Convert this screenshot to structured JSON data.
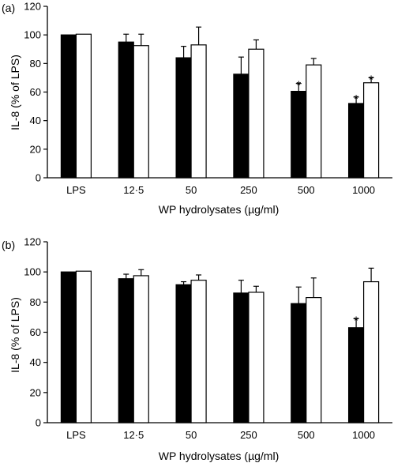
{
  "chart_data": [
    {
      "type": "bar",
      "panel_label": "(a)",
      "categories": [
        "LPS",
        "12·5",
        "50",
        "250",
        "500",
        "1000"
      ],
      "series": [
        {
          "values": [
            100,
            95,
            84,
            72.5,
            60.5,
            52
          ],
          "errors": [
            0,
            5.5,
            8,
            12,
            5.5,
            4.5
          ],
          "significant": [
            false,
            false,
            false,
            false,
            true,
            true
          ],
          "color": "#000000"
        },
        {
          "values": [
            100.5,
            92.5,
            93,
            90,
            79,
            66.5
          ],
          "errors": [
            0,
            8,
            12.5,
            6.5,
            4.5,
            3.5
          ],
          "significant": [
            false,
            false,
            false,
            false,
            false,
            true
          ],
          "color": "#ffffff"
        }
      ],
      "significance_marker": "*",
      "xlabel": "WP hydrolysates (µg/ml)",
      "ylabel": "IL-8 (% of LPS)",
      "ylim": [
        0,
        120
      ],
      "yticks": [
        "0",
        "20",
        "40",
        "60",
        "80",
        "100",
        "120"
      ]
    },
    {
      "type": "bar",
      "panel_label": "(b)",
      "categories": [
        "LPS",
        "12·5",
        "50",
        "250",
        "500",
        "1000"
      ],
      "series": [
        {
          "values": [
            100,
            95.5,
            91.5,
            86,
            79,
            63
          ],
          "errors": [
            0,
            3,
            2,
            8.5,
            11,
            6
          ],
          "significant": [
            false,
            false,
            false,
            false,
            false,
            true
          ],
          "color": "#000000"
        },
        {
          "values": [
            100.5,
            97.5,
            94.5,
            86.5,
            83,
            93.5
          ],
          "errors": [
            0,
            4,
            3.5,
            4,
            13,
            9
          ],
          "significant": [
            false,
            false,
            false,
            false,
            false,
            false
          ],
          "color": "#ffffff"
        }
      ],
      "significance_marker": "*",
      "xlabel": "WP hydrolysates (µg/ml)",
      "ylabel": "IL-8 (% of LPS)",
      "ylim": [
        0,
        120
      ],
      "yticks": [
        "0",
        "20",
        "40",
        "60",
        "80",
        "100",
        "120"
      ]
    }
  ]
}
